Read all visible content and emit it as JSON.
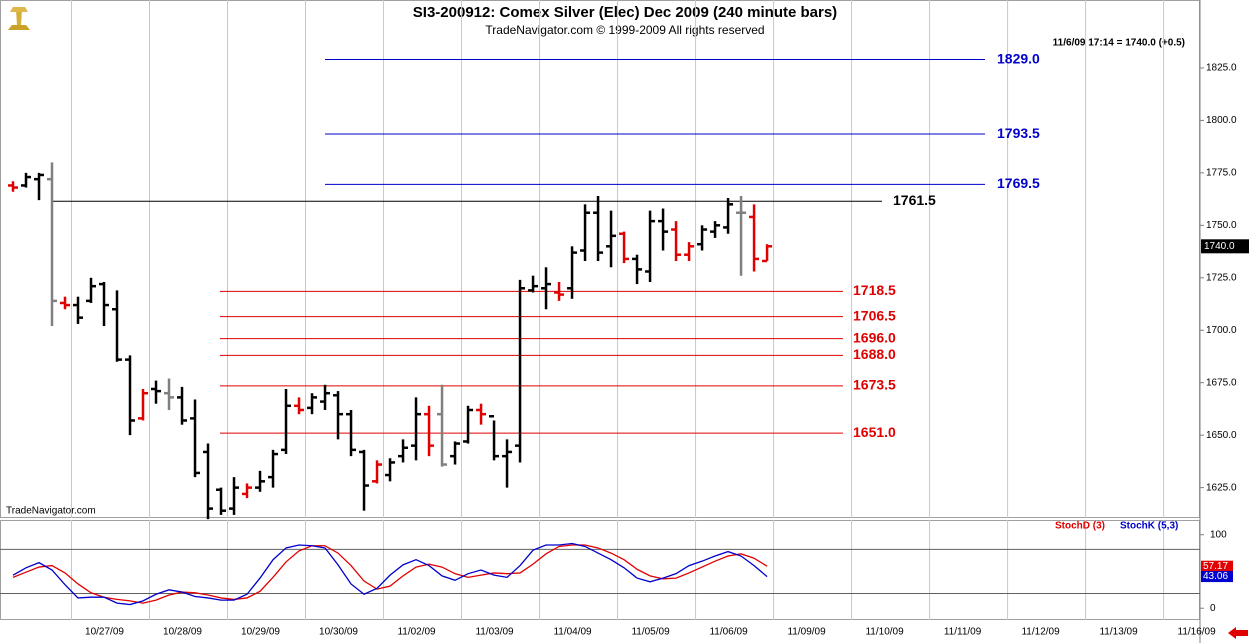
{
  "chart_data": [
    {
      "type": "ohlc",
      "title": "SI3-200912:  Comex Silver (Elec) Dec 2009  (240 minute bars)",
      "subtitle": "TradeNavigator.com © 1999-2009 All rights reserved",
      "annotation": "11/6/09 17:14 = 1740.0 (+0.5)",
      "watermark": "TradeNavigator.com",
      "last": {
        "value": 1740,
        "label": "1740.0"
      },
      "xlim": [
        -1,
        91.3
      ],
      "ylim": [
        1611,
        1855
      ],
      "yticks": [
        {
          "value": 1625,
          "label": "1625.0"
        },
        {
          "value": 1650,
          "label": "1650.0"
        },
        {
          "value": 1675,
          "label": "1675.0"
        },
        {
          "value": 1700,
          "label": "1700.0"
        },
        {
          "value": 1725,
          "label": "1725.0"
        },
        {
          "value": 1750,
          "label": "1750.0"
        },
        {
          "value": 1775,
          "label": "1775.0"
        },
        {
          "value": 1800,
          "label": "1800.0"
        },
        {
          "value": 1825,
          "label": "1825.0"
        }
      ],
      "levels": [
        {
          "value": 1829,
          "label": "1829.0",
          "color": "#0000cc"
        },
        {
          "value": 1793.5,
          "label": "1793.5",
          "color": "#0000cc"
        },
        {
          "value": 1769.5,
          "label": "1769.5",
          "color": "#0000cc"
        },
        {
          "value": 1761.5,
          "label": "1761.5",
          "color": "#000000"
        },
        {
          "value": 1718.5,
          "label": "1718.5",
          "color": "#e00000"
        },
        {
          "value": 1706.5,
          "label": "1706.5",
          "color": "#e00000"
        },
        {
          "value": 1696,
          "label": "1696.0",
          "color": "#e00000"
        },
        {
          "value": 1688,
          "label": "1688.0",
          "color": "#e00000"
        },
        {
          "value": 1673.5,
          "label": "1673.5",
          "color": "#e00000"
        },
        {
          "value": 1651,
          "label": "1651.0",
          "color": "#e00000"
        }
      ],
      "open": [
        1769,
        1769,
        1772,
        1772,
        1713,
        1712,
        1714,
        1722,
        1710,
        1686,
        1658,
        1672,
        1670,
        1668,
        1658,
        1642,
        1624,
        1615,
        1622,
        1625,
        1630,
        1643,
        1664,
        1663,
        1666,
        1669,
        1660,
        1642,
        1628,
        1631,
        1640,
        1645,
        1660,
        1660,
        1640,
        1647,
        1662,
        1659,
        1640,
        1645,
        1719,
        1720,
        1718,
        1720,
        1738,
        1756,
        1740,
        1746,
        1734,
        1728,
        1752,
        1748,
        1736,
        1741,
        1747,
        1749,
        1756,
        1754,
        1733
      ],
      "high": [
        1771,
        1775,
        1775,
        1780,
        1716,
        1716,
        1725,
        1723,
        1719,
        1688,
        1672,
        1676,
        1677,
        1673,
        1667,
        1646,
        1625,
        1630,
        1627,
        1633,
        1643,
        1672,
        1668,
        1670,
        1674,
        1671,
        1662,
        1643,
        1638,
        1639,
        1648,
        1668,
        1664,
        1674,
        1647,
        1664,
        1665,
        1657,
        1648,
        1724,
        1726,
        1730,
        1723,
        1740,
        1760,
        1764,
        1757,
        1747,
        1736,
        1757,
        1758,
        1752,
        1742,
        1750,
        1752,
        1763,
        1764,
        1760,
        1741
      ],
      "low": [
        1766,
        1768,
        1762,
        1702,
        1710,
        1703,
        1713,
        1702,
        1685,
        1650,
        1657,
        1665,
        1662,
        1655,
        1630,
        1610,
        1612,
        1612,
        1620,
        1623,
        1625,
        1641,
        1660,
        1660,
        1662,
        1648,
        1640,
        1614,
        1627,
        1628,
        1637,
        1638,
        1640,
        1635,
        1636,
        1646,
        1655,
        1638,
        1625,
        1637,
        1718,
        1710,
        1714,
        1715,
        1733,
        1733,
        1730,
        1732,
        1722,
        1723,
        1738,
        1733,
        1733,
        1738,
        1744,
        1746,
        1726,
        1728,
        1733
      ],
      "close": [
        1768,
        1773,
        1774,
        1714,
        1712,
        1706,
        1721,
        1712,
        1686,
        1657,
        1670,
        1671,
        1668,
        1657,
        1632,
        1615,
        1614,
        1625,
        1625,
        1628,
        1641,
        1664,
        1662,
        1668,
        1670,
        1660,
        1643,
        1626,
        1636,
        1637,
        1644,
        1660,
        1645,
        1636,
        1646,
        1662,
        1660,
        1640,
        1642,
        1720,
        1721,
        1722,
        1717,
        1737,
        1756,
        1737,
        1745,
        1734,
        1729,
        1752,
        1747,
        1736,
        1740,
        1748,
        1750,
        1760,
        1756,
        1734,
        1740
      ],
      "colors": [
        "#e00000",
        "#000000",
        "#000000",
        "#808080",
        "#e00000",
        "#000000",
        "#000000",
        "#000000",
        "#000000",
        "#000000",
        "#e00000",
        "#000000",
        "#808080",
        "#000000",
        "#000000",
        "#000000",
        "#000000",
        "#000000",
        "#e00000",
        "#000000",
        "#000000",
        "#000000",
        "#e00000",
        "#000000",
        "#000000",
        "#000000",
        "#000000",
        "#000000",
        "#e00000",
        "#000000",
        "#000000",
        "#000000",
        "#e00000",
        "#808080",
        "#000000",
        "#000000",
        "#e00000",
        "#000000",
        "#000000",
        "#000000",
        "#000000",
        "#000000",
        "#e00000",
        "#000000",
        "#000000",
        "#000000",
        "#000000",
        "#e00000",
        "#000000",
        "#000000",
        "#000000",
        "#e00000",
        "#e00000",
        "#000000",
        "#000000",
        "#000000",
        "#808080",
        "#e00000",
        "#e00000"
      ]
    },
    {
      "type": "line",
      "xlim": [
        -1,
        91.3
      ],
      "ylim": [
        -16,
        120
      ],
      "yticks": [
        0,
        100
      ],
      "hlines": [
        20,
        80
      ],
      "xticks": [
        {
          "value": 4.5,
          "label": "10/27/09"
        },
        {
          "value": 10.5,
          "label": "10/28/09"
        },
        {
          "value": 16.5,
          "label": "10/29/09"
        },
        {
          "value": 22.5,
          "label": "10/30/09"
        },
        {
          "value": 28.5,
          "label": "11/02/09"
        },
        {
          "value": 34.5,
          "label": "11/03/09"
        },
        {
          "value": 40.5,
          "label": "11/04/09"
        },
        {
          "value": 46.5,
          "label": "11/05/09"
        },
        {
          "value": 52.5,
          "label": "11/06/09"
        },
        {
          "value": 58.5,
          "label": "11/09/09"
        },
        {
          "value": 64.5,
          "label": "11/10/09"
        },
        {
          "value": 70.5,
          "label": "11/11/09"
        },
        {
          "value": 76.5,
          "label": "11/12/09"
        },
        {
          "value": 82.5,
          "label": "11/13/09"
        },
        {
          "value": 88.5,
          "label": "11/16/09"
        }
      ],
      "series": [
        {
          "name": "StochD (3)",
          "color": "#e00000",
          "values": [
            42,
            49,
            56,
            58,
            48,
            33,
            21,
            15,
            12,
            10,
            7,
            11,
            18,
            22,
            21,
            18,
            14,
            12,
            14,
            23,
            42,
            63,
            78,
            85,
            85,
            75,
            58,
            37,
            26,
            30,
            44,
            56,
            60,
            56,
            47,
            42,
            45,
            48,
            47,
            48,
            60,
            74,
            84,
            86,
            86,
            82,
            75,
            66,
            53,
            44,
            40,
            41,
            48,
            56,
            64,
            71,
            74,
            68,
            57.17
          ]
        },
        {
          "name": "StochK (5,3)",
          "color": "#0000cc",
          "values": [
            45,
            55,
            62,
            52,
            32,
            14,
            15,
            15,
            7,
            5,
            10,
            19,
            25,
            22,
            16,
            14,
            11,
            11,
            19,
            41,
            66,
            82,
            86,
            85,
            82,
            59,
            33,
            19,
            27,
            45,
            59,
            66,
            58,
            44,
            38,
            47,
            52,
            45,
            42,
            58,
            79,
            86,
            86,
            88,
            84,
            75,
            66,
            55,
            41,
            36,
            41,
            47,
            58,
            64,
            71,
            77,
            71,
            58,
            43.06
          ]
        }
      ]
    }
  ]
}
